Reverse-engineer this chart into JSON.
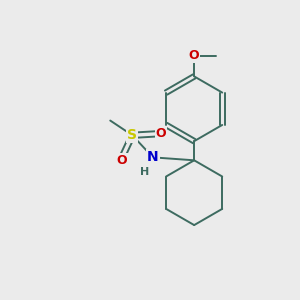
{
  "background_color": "#ebebeb",
  "bond_color": "#3d6b60",
  "atom_colors": {
    "S": "#c8c800",
    "N": "#0000cc",
    "O": "#cc0000",
    "H": "#3d6b60",
    "C": "#3d6b60"
  },
  "figsize": [
    3.0,
    3.0
  ],
  "dpi": 100,
  "bond_lw": 1.4,
  "font_size_atom": 9,
  "font_size_small": 7.5
}
